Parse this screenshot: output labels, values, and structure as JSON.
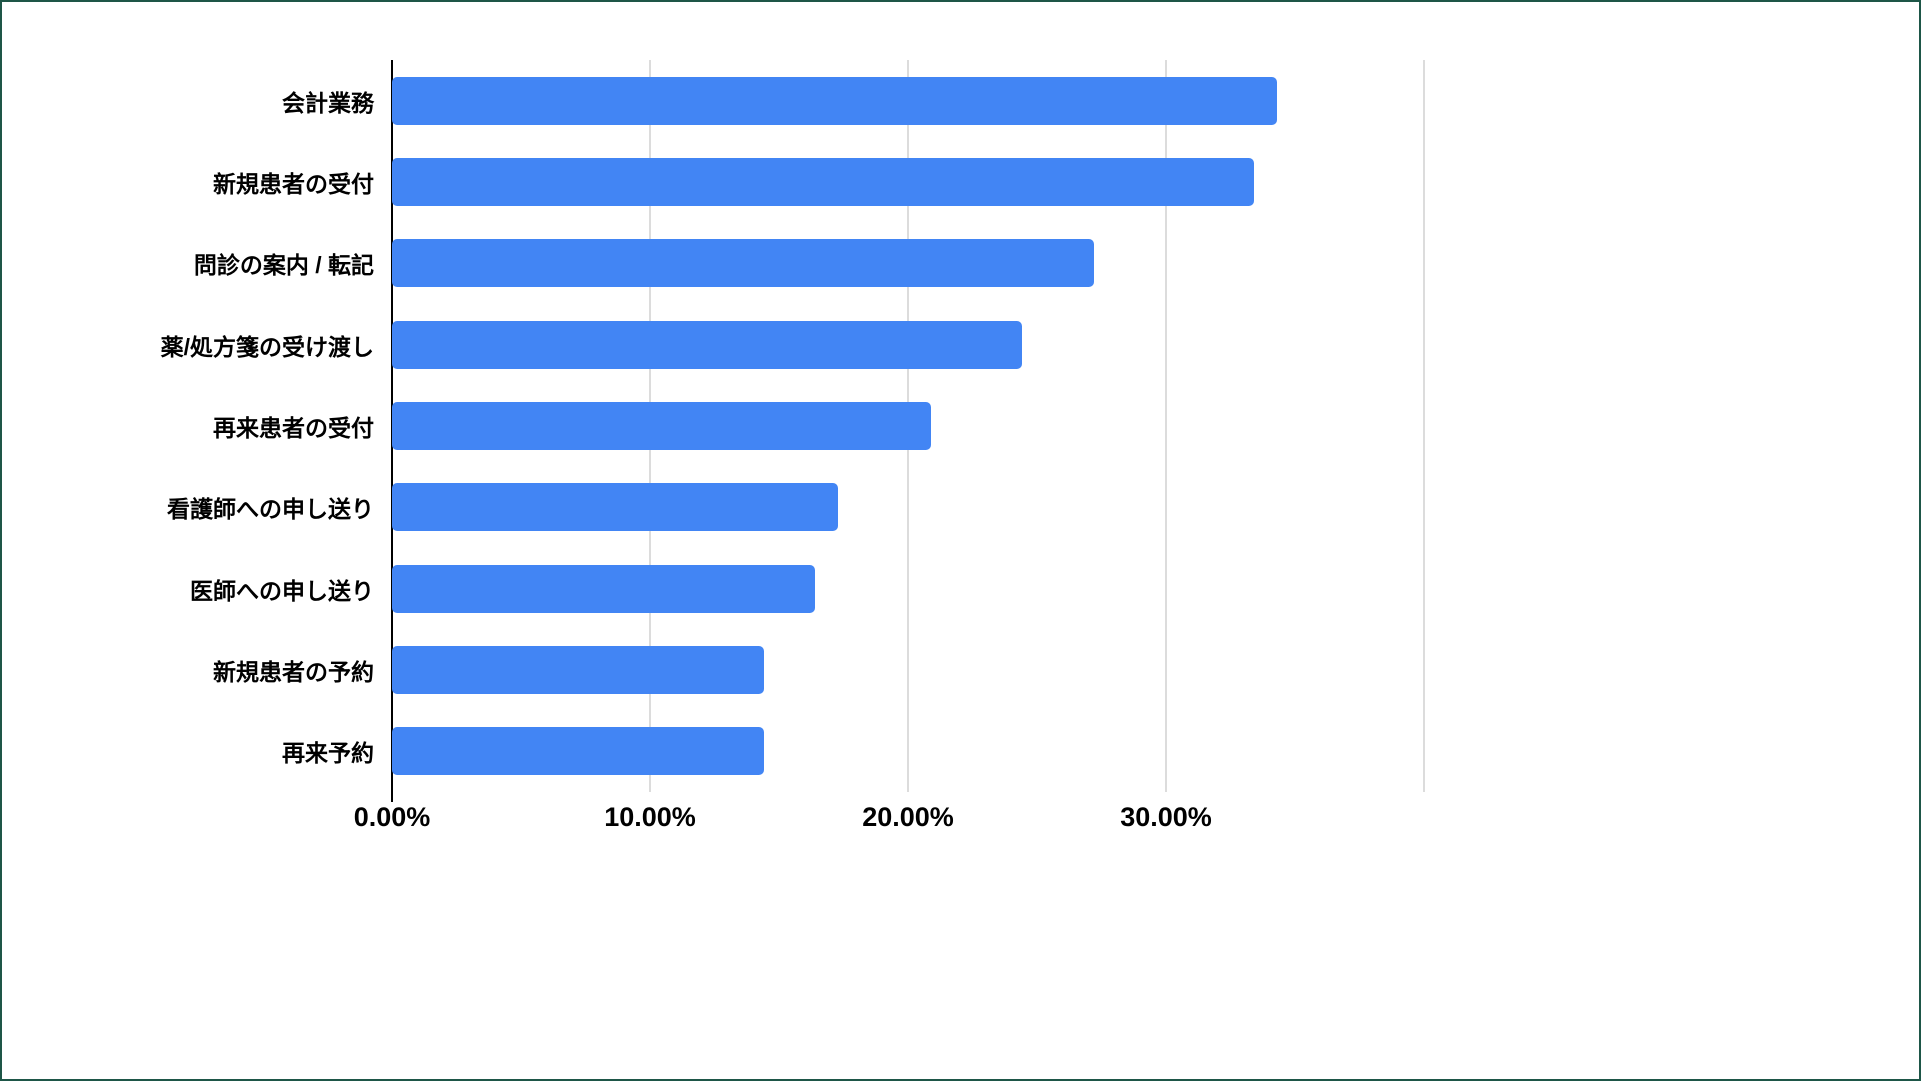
{
  "page": {
    "background": "#ffffff",
    "frame_border_color": "#1e5647"
  },
  "chart_data": {
    "type": "bar",
    "orientation": "horizontal",
    "title": "",
    "categories": [
      "会計業務",
      "新規患者の受付",
      "問診の案内 / 転記",
      "薬/処方箋の受け渡し",
      "再来患者の受付",
      "看護師への申し送り",
      "医師への申し送り",
      "新規患者の予約",
      "再来予約"
    ],
    "values": [
      34.3,
      33.4,
      27.2,
      24.4,
      20.9,
      17.3,
      16.4,
      14.4,
      14.4
    ],
    "value_unit": "%",
    "xlabel": "",
    "ylabel": "",
    "xlim": [
      0,
      40
    ],
    "x_tick_values": [
      0,
      10,
      20,
      30
    ],
    "x_tick_labels": [
      "0.00%",
      "10.00%",
      "20.00%",
      "30.00%"
    ],
    "gridline_values": [
      0,
      10,
      20,
      30,
      40
    ],
    "grid": true,
    "legend": "none",
    "bar_color": "#4285f4",
    "gridline_color": "#dcdcdc",
    "axis_color": "#000000",
    "label_color": "#000000"
  }
}
